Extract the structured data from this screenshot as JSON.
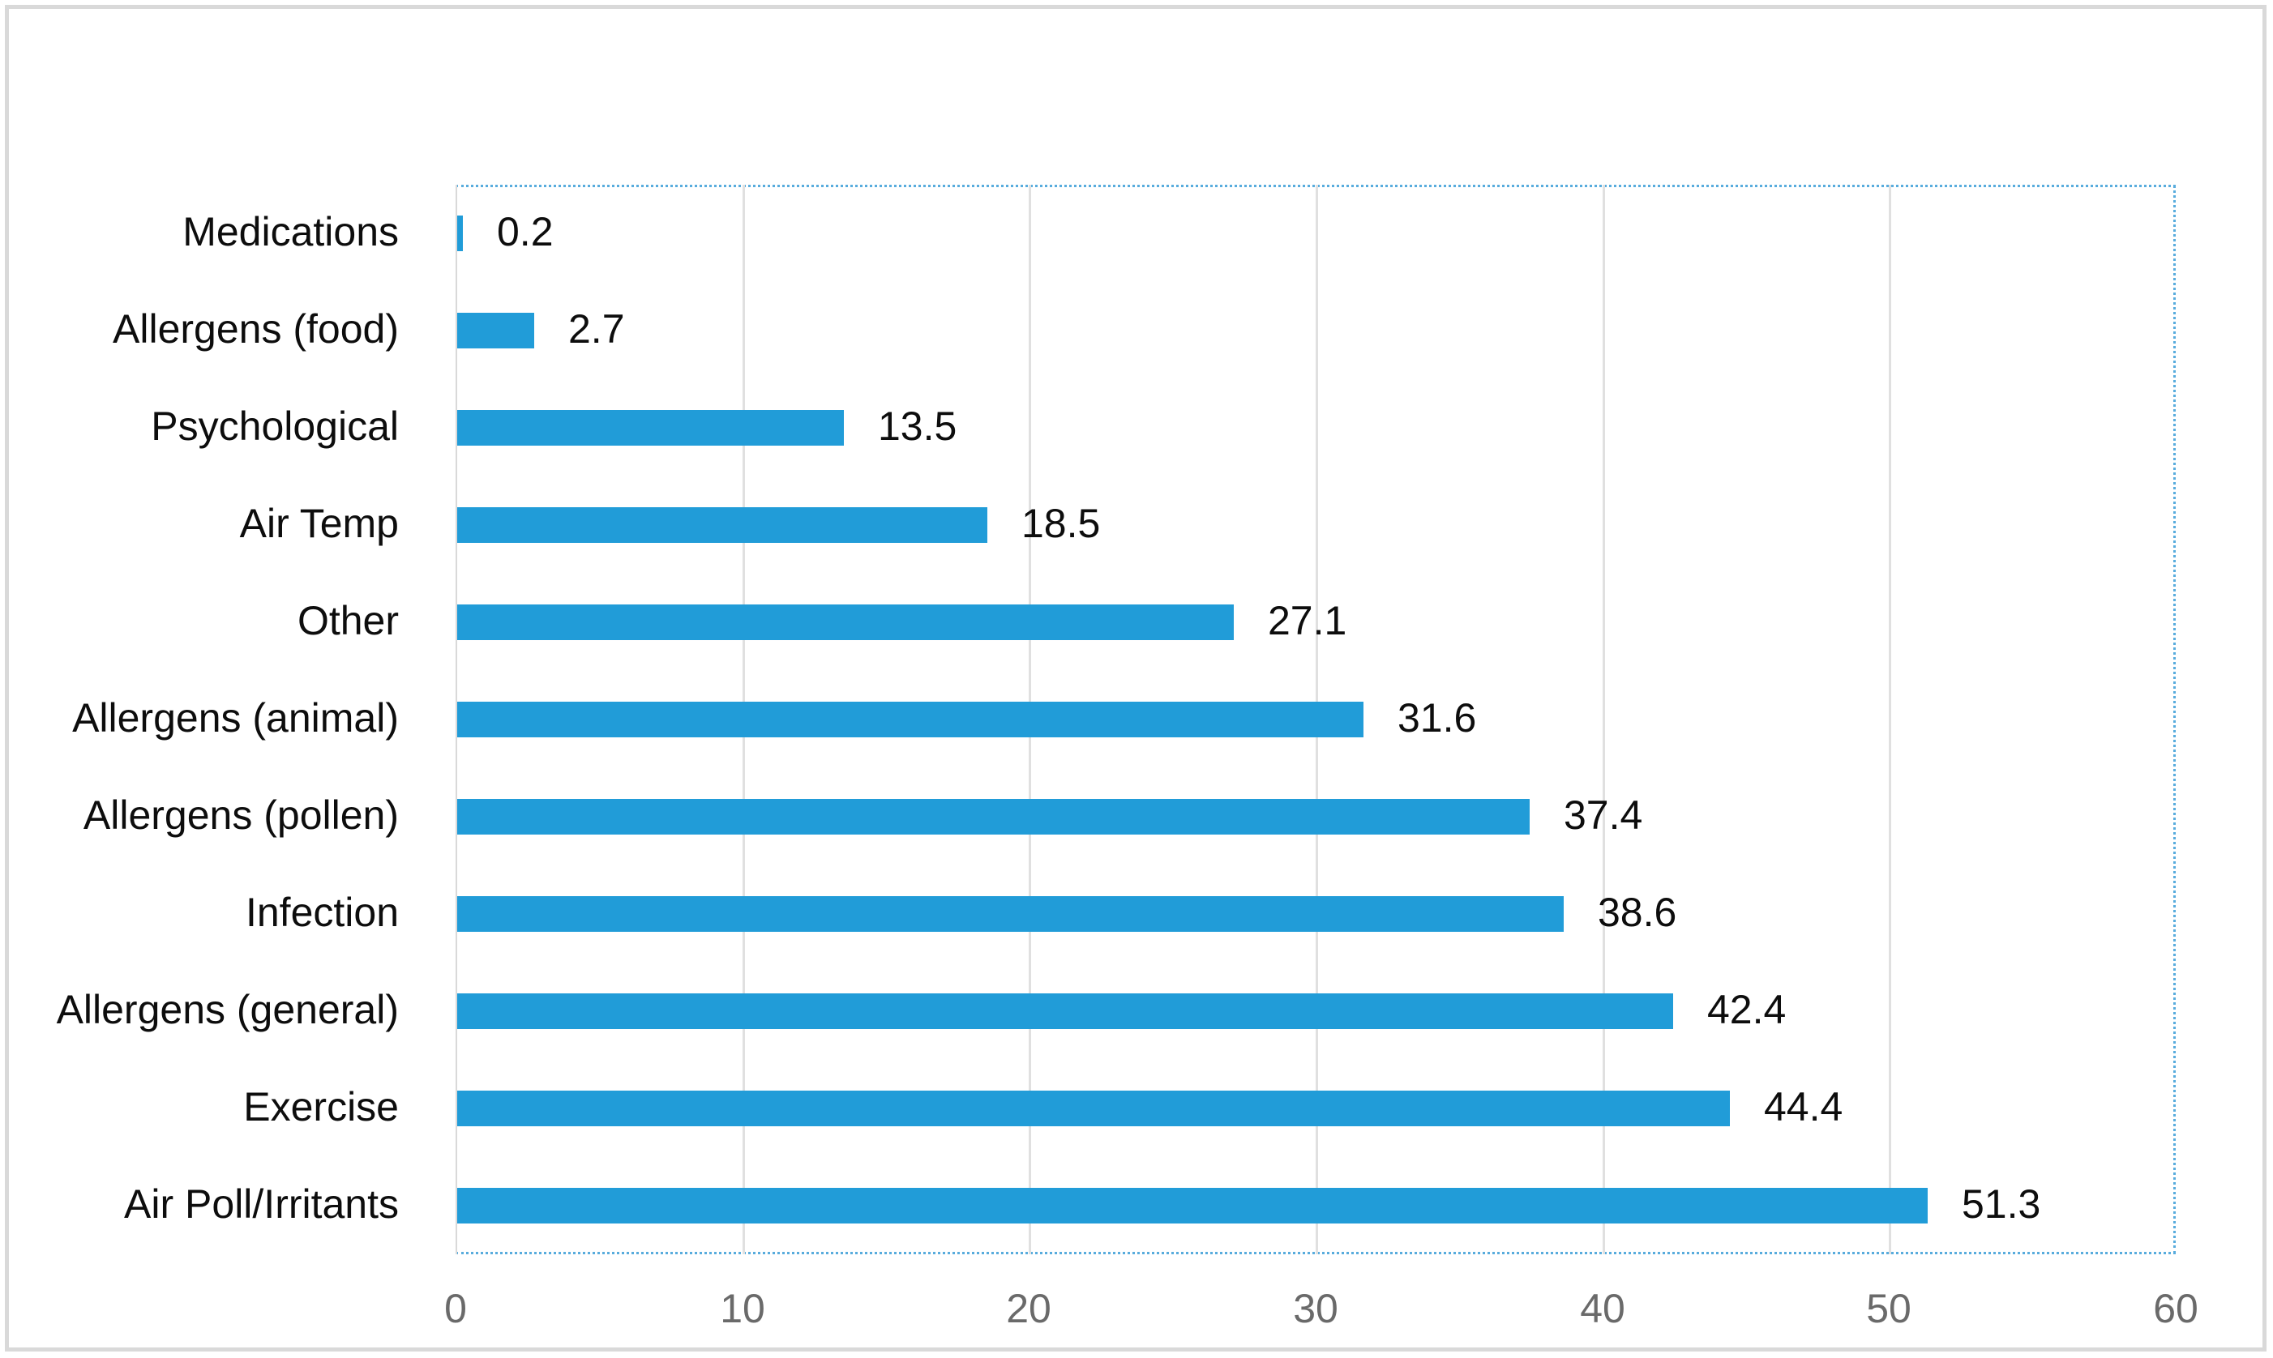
{
  "chart_data": {
    "type": "bar",
    "orientation": "horizontal",
    "title": "",
    "xlabel": "",
    "ylabel": "",
    "categories": [
      "Medications",
      "Allergens (food)",
      "Psychological",
      "Air Temp",
      "Other",
      "Allergens (animal)",
      "Allergens (pollen)",
      "Infection",
      "Allergens (general)",
      "Exercise",
      "Air Poll/Irritants"
    ],
    "values": [
      0.2,
      2.7,
      13.5,
      18.5,
      27.1,
      31.6,
      37.4,
      38.6,
      42.4,
      44.4,
      51.3
    ],
    "data_labels": [
      "0.2",
      "2.7",
      "13.5",
      "18.5",
      "27.1",
      "31.6",
      "37.4",
      "38.6",
      "42.4",
      "44.4",
      "51.3"
    ],
    "xlim": [
      0,
      60
    ],
    "x_ticks": [
      0,
      10,
      20,
      30,
      40,
      50,
      60
    ],
    "x_tick_labels": [
      "0",
      "10",
      "20",
      "30",
      "40",
      "50",
      "60"
    ],
    "grid": true,
    "legend": "none",
    "colors": {
      "bar": "#219cd8",
      "gridline": "#e0e0e0",
      "axis_line": "#d9d9d9",
      "plot_border": "#58acdd",
      "tick_label": "#6a6a6a",
      "label": "#0d0d0d",
      "outer_border": "#d9d9d9"
    }
  }
}
